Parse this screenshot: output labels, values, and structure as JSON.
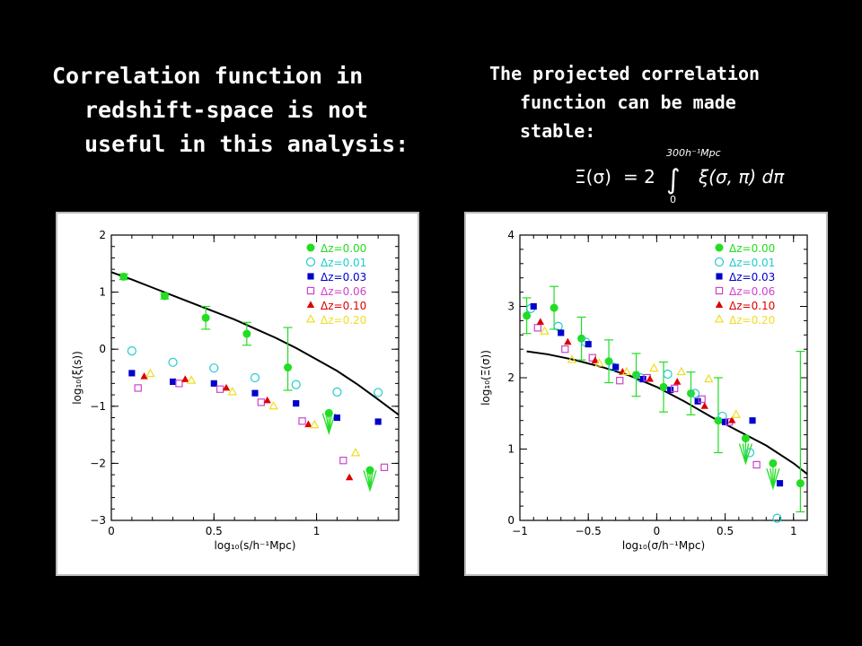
{
  "slide": {
    "left_heading": [
      "Correlation function in",
      "redshift-space is not",
      "useful in this analysis:"
    ],
    "right_heading": [
      "The projected correlation",
      "function can be made",
      "stable:"
    ],
    "formula": {
      "lhs": "Ξ(σ)",
      "equals": "= 2",
      "upper_limit": "300h⁻¹Mpc",
      "lower_limit": "0",
      "integrand": "ξ(σ, π) dπ"
    }
  },
  "colors": {
    "dz0": "#22dd22",
    "dz1": "#22cccc",
    "dz3": "#0000cc",
    "dz6": "#cc44cc",
    "dz10": "#dd0000",
    "dz20": "#eedd22"
  },
  "legend": [
    {
      "label": "Δz=0.00",
      "color": "#22dd22",
      "marker": "filled-circle"
    },
    {
      "label": "Δz=0.01",
      "color": "#22cccc",
      "marker": "open-circle"
    },
    {
      "label": "Δz=0.03",
      "color": "#0000cc",
      "marker": "filled-square"
    },
    {
      "label": "Δz=0.06",
      "color": "#cc44cc",
      "marker": "open-square"
    },
    {
      "label": "Δz=0.10",
      "color": "#dd0000",
      "marker": "filled-triangle"
    },
    {
      "label": "Δz=0.20",
      "color": "#eedd22",
      "marker": "open-triangle"
    }
  ],
  "chart_data": [
    {
      "type": "scatter",
      "xlabel": "log₁₀(s/h⁻¹Mpc)",
      "ylabel": "log₁₀(ξ(s))",
      "xlim": [
        0,
        1.4
      ],
      "ylim": [
        -3,
        2
      ],
      "xticks": [
        "0",
        "0.5",
        "1"
      ],
      "yticks": [
        "−3",
        "−2",
        "−1",
        "0",
        "1",
        "2"
      ],
      "legend_position": "top-right",
      "model_line": {
        "x": [
          0,
          0.1,
          0.2,
          0.3,
          0.4,
          0.5,
          0.6,
          0.7,
          0.8,
          0.9,
          1.0,
          1.1,
          1.2,
          1.3,
          1.4
        ],
        "y": [
          1.35,
          1.22,
          1.08,
          0.94,
          0.8,
          0.66,
          0.52,
          0.36,
          0.2,
          0.02,
          -0.18,
          -0.38,
          -0.62,
          -0.88,
          -1.15
        ]
      },
      "series": [
        {
          "name": "Δz=0.00",
          "x": [
            0.06,
            0.26,
            0.46,
            0.66,
            0.86,
            1.06,
            1.26
          ],
          "y": [
            1.27,
            0.93,
            0.55,
            0.27,
            -0.32,
            -1.12,
            -2.12
          ],
          "err": [
            [
              0.05,
              0.05
            ],
            [
              0.05,
              0.05
            ],
            [
              0.2,
              0.2
            ],
            [
              0.2,
              0.2
            ],
            [
              0.4,
              0.7
            ],
            [
              0.35,
              0.0
            ],
            [
              0.35,
              0.0
            ]
          ],
          "arrow": [
            false,
            false,
            false,
            false,
            false,
            true,
            true
          ]
        },
        {
          "name": "Δz=0.01",
          "x": [
            0.1,
            0.3,
            0.5,
            0.7,
            0.9,
            1.1,
            1.3
          ],
          "y": [
            -0.03,
            -0.23,
            -0.33,
            -0.5,
            -0.62,
            -0.75,
            -0.76
          ]
        },
        {
          "name": "Δz=0.03",
          "x": [
            0.1,
            0.3,
            0.5,
            0.7,
            0.9,
            1.1,
            1.3
          ],
          "y": [
            -0.42,
            -0.57,
            -0.6,
            -0.77,
            -0.95,
            -1.2,
            -1.27
          ]
        },
        {
          "name": "Δz=0.06",
          "x": [
            0.13,
            0.33,
            0.53,
            0.73,
            0.93,
            1.13,
            1.33
          ],
          "y": [
            -0.68,
            -0.6,
            -0.7,
            -0.93,
            -1.26,
            -1.95,
            -2.07
          ]
        },
        {
          "name": "Δz=0.10",
          "x": [
            0.16,
            0.36,
            0.56,
            0.76,
            0.96,
            1.16
          ],
          "y": [
            -0.48,
            -0.53,
            -0.68,
            -0.9,
            -1.32,
            -2.25
          ]
        },
        {
          "name": "Δz=0.20",
          "x": [
            0.19,
            0.39,
            0.59,
            0.79,
            0.99,
            1.19
          ],
          "y": [
            -0.43,
            -0.55,
            -0.75,
            -1.0,
            -1.33,
            -1.82
          ]
        }
      ]
    },
    {
      "type": "scatter",
      "xlabel": "log₁₀(σ/h⁻¹Mpc)",
      "ylabel": "log₁₀(Ξ(σ))",
      "xlim": [
        -1,
        1.1
      ],
      "ylim": [
        0,
        4
      ],
      "xticks": [
        "−1",
        "−0.5",
        "0",
        "0.5",
        "1"
      ],
      "yticks": [
        "0",
        "1",
        "2",
        "3",
        "4"
      ],
      "legend_position": "top-right",
      "model_line": {
        "x": [
          -0.95,
          -0.8,
          -0.6,
          -0.4,
          -0.2,
          0.0,
          0.2,
          0.4,
          0.6,
          0.8,
          1.0,
          1.1
        ],
        "y": [
          2.37,
          2.33,
          2.25,
          2.15,
          2.03,
          1.87,
          1.67,
          1.45,
          1.25,
          1.05,
          0.8,
          0.65
        ]
      },
      "series": [
        {
          "name": "Δz=0.00",
          "x": [
            -0.95,
            -0.75,
            -0.55,
            -0.35,
            -0.15,
            0.05,
            0.25,
            0.45,
            0.65,
            0.85,
            1.05
          ],
          "y": [
            2.87,
            2.98,
            2.55,
            2.23,
            2.04,
            1.87,
            1.78,
            1.4,
            1.15,
            0.8,
            0.52
          ],
          "err": [
            [
              0.25,
              0.25
            ],
            [
              0.3,
              0.3
            ],
            [
              0.3,
              0.3
            ],
            [
              0.3,
              0.3
            ],
            [
              0.3,
              0.3
            ],
            [
              0.35,
              0.35
            ],
            [
              0.3,
              0.3
            ],
            [
              0.45,
              0.6
            ],
            [
              0.35,
              0.0
            ],
            [
              0.35,
              0.0
            ],
            [
              0.4,
              1.85
            ]
          ],
          "arrow": [
            false,
            false,
            false,
            false,
            false,
            false,
            false,
            false,
            true,
            true,
            false
          ]
        },
        {
          "name": "Δz=0.01",
          "x": [
            -0.92,
            -0.72,
            -0.52,
            -0.32,
            -0.12,
            0.08,
            0.28,
            0.48,
            0.68,
            0.88
          ],
          "y": [
            2.97,
            2.72,
            2.5,
            2.15,
            2.0,
            2.05,
            1.78,
            1.46,
            0.95,
            0.03
          ]
        },
        {
          "name": "Δz=0.03",
          "x": [
            -0.9,
            -0.7,
            -0.5,
            -0.3,
            -0.1,
            0.1,
            0.3,
            0.5,
            0.7,
            0.9
          ],
          "y": [
            3.0,
            2.63,
            2.47,
            2.15,
            1.98,
            1.83,
            1.67,
            1.38,
            1.4,
            0.52
          ]
        },
        {
          "name": "Δz=0.06",
          "x": [
            -0.87,
            -0.67,
            -0.47,
            -0.27,
            -0.07,
            0.13,
            0.33,
            0.53,
            0.73
          ],
          "y": [
            2.7,
            2.4,
            2.28,
            1.96,
            2.0,
            1.85,
            1.7,
            1.38,
            0.78
          ]
        },
        {
          "name": "Δz=0.10",
          "x": [
            -0.85,
            -0.65,
            -0.45,
            -0.25,
            -0.05,
            0.15,
            0.35,
            0.55
          ],
          "y": [
            2.78,
            2.5,
            2.24,
            2.08,
            1.98,
            1.94,
            1.6,
            1.4
          ]
        },
        {
          "name": "Δz=0.20",
          "x": [
            -0.82,
            -0.62,
            -0.42,
            -0.22,
            -0.02,
            0.18,
            0.38,
            0.58
          ],
          "y": [
            2.65,
            2.25,
            2.2,
            2.08,
            2.13,
            2.08,
            1.98,
            1.48
          ]
        }
      ]
    }
  ]
}
